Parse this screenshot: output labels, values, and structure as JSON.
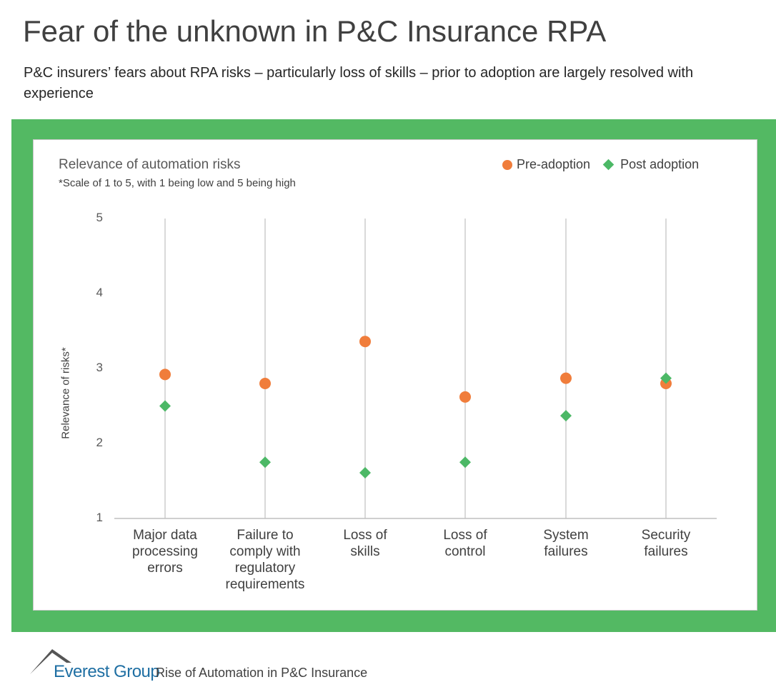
{
  "header": {
    "title": "Fear of the unknown in P&C Insurance RPA",
    "subtitle": "P&C insurers’ fears about RPA risks – particularly loss of skills – prior to adoption are largely resolved with experience"
  },
  "colors": {
    "frame": "#53b963",
    "pre": "#f07d3b",
    "post": "#4cb866",
    "gridline": "#d9d9d9"
  },
  "chart_data": {
    "type": "scatter",
    "title": "Relevance of automation risks",
    "note": "*Scale of 1 to 5, with 1 being low and 5 being high",
    "ylabel": "Relevance of risks*",
    "ylim": [
      1,
      5
    ],
    "yticks": [
      "1",
      "2",
      "3",
      "4",
      "5"
    ],
    "legend_position": "top-right",
    "categories": [
      "Major data processing errors",
      "Failure to comply with regulatory requirements",
      "Loss of skills",
      "Loss of control",
      "System failures",
      "Security failures"
    ],
    "category_lines": [
      [
        "Major data",
        "processing",
        "errors"
      ],
      [
        "Failure to",
        "comply with",
        "regulatory",
        "requirements"
      ],
      [
        "Loss of",
        "skills"
      ],
      [
        "Loss of",
        "control"
      ],
      [
        "System",
        "failures"
      ],
      [
        "Security",
        "failures"
      ]
    ],
    "series": [
      {
        "name": "Pre-adoption",
        "marker": "circle",
        "values": [
          2.92,
          2.8,
          3.36,
          2.62,
          2.87,
          2.8
        ]
      },
      {
        "name": "Post adoption",
        "marker": "diamond",
        "values": [
          2.5,
          1.75,
          1.61,
          1.75,
          2.37,
          2.87
        ]
      }
    ]
  },
  "footer": {
    "brand": "Everest Group",
    "text": "Rise of Automation in P&C Insurance"
  }
}
